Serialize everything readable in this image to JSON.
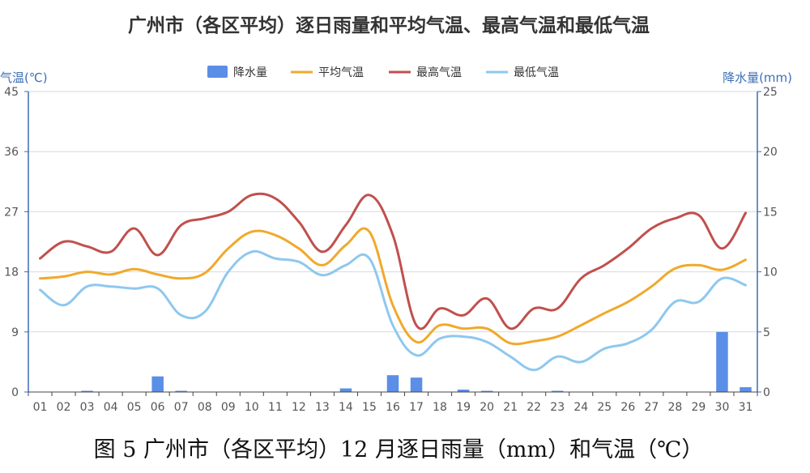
{
  "title": "广州市（各区平均）逐日雨量和平均气温、最高气温和最低气温",
  "caption": "图 5  广州市（各区平均）12 月逐日雨量（mm）和气温（℃）",
  "chart_data": {
    "type": "line",
    "xlabel": "",
    "categories": [
      "01",
      "02",
      "03",
      "04",
      "05",
      "06",
      "07",
      "08",
      "09",
      "10",
      "11",
      "12",
      "13",
      "14",
      "15",
      "16",
      "17",
      "18",
      "19",
      "20",
      "21",
      "22",
      "23",
      "24",
      "25",
      "26",
      "27",
      "28",
      "29",
      "30",
      "31"
    ],
    "y_left": {
      "title": "气温(℃)",
      "ylim": [
        0,
        45
      ],
      "ticks": [
        0,
        9,
        18,
        27,
        36,
        45
      ]
    },
    "y_right": {
      "title": "降水量(mm)",
      "ylim": [
        0,
        25
      ],
      "ticks": [
        0,
        5,
        10,
        15,
        20,
        25
      ]
    },
    "grid": true,
    "legend": {
      "placement": "top-center"
    },
    "series": [
      {
        "name": "降水量",
        "type": "bar",
        "axis": "right",
        "color": "#5b8ee6",
        "values": [
          0,
          0,
          0.1,
          0,
          0,
          1.3,
          0.1,
          0,
          0,
          0,
          0,
          0,
          0,
          0.3,
          0,
          1.4,
          1.2,
          0,
          0.2,
          0.1,
          0,
          0,
          0.1,
          0,
          0,
          0,
          0,
          0,
          0,
          5.0,
          0.4
        ]
      },
      {
        "name": "平均气温",
        "type": "line",
        "axis": "left",
        "color": "#f0a92c",
        "values": [
          17.0,
          17.3,
          18.0,
          17.6,
          18.4,
          17.6,
          17.0,
          17.8,
          21.5,
          24.0,
          23.5,
          21.5,
          19.0,
          22.0,
          24.0,
          13.0,
          7.5,
          10.0,
          9.5,
          9.5,
          7.3,
          7.6,
          8.3,
          10.0,
          11.8,
          13.5,
          15.8,
          18.5,
          19.0,
          18.3,
          19.8
        ]
      },
      {
        "name": "最高气温",
        "type": "line",
        "axis": "left",
        "color": "#c0504d",
        "values": [
          20.0,
          22.5,
          21.8,
          21.0,
          24.5,
          20.5,
          25.0,
          26.0,
          27.0,
          29.5,
          29.0,
          25.5,
          21.0,
          25.0,
          29.5,
          23.5,
          10.0,
          12.5,
          11.5,
          14.0,
          9.5,
          12.5,
          12.5,
          17.0,
          19.0,
          21.5,
          24.5,
          26.0,
          26.5,
          21.5,
          26.8
        ]
      },
      {
        "name": "最低气温",
        "type": "line",
        "axis": "left",
        "color": "#8ec8ee",
        "values": [
          15.3,
          13.0,
          15.8,
          15.8,
          15.5,
          15.5,
          11.5,
          12.0,
          18.0,
          21.0,
          20.0,
          19.5,
          17.5,
          19.0,
          20.0,
          10.0,
          5.5,
          8.0,
          8.3,
          7.5,
          5.3,
          3.3,
          5.3,
          4.5,
          6.5,
          7.3,
          9.3,
          13.5,
          13.5,
          17.0,
          16.0
        ]
      }
    ]
  }
}
